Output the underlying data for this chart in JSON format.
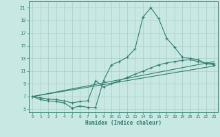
{
  "xlabel": "Humidex (Indice chaleur)",
  "xlim": [
    -0.5,
    23.5
  ],
  "ylim": [
    4.5,
    22
  ],
  "xticks": [
    0,
    1,
    2,
    3,
    4,
    5,
    6,
    7,
    8,
    9,
    10,
    11,
    12,
    13,
    14,
    15,
    16,
    17,
    18,
    19,
    20,
    21,
    22,
    23
  ],
  "yticks": [
    5,
    7,
    9,
    11,
    13,
    15,
    17,
    19,
    21
  ],
  "bg_color": "#c8e8e4",
  "grid_color": "#b0c8c4",
  "line_color": "#2e7d6e",
  "line1_x": [
    0,
    1,
    2,
    3,
    4,
    5,
    6,
    7,
    8,
    9,
    10,
    11,
    12,
    13,
    14,
    15,
    16,
    17,
    18,
    19,
    20,
    21,
    22,
    23
  ],
  "line1_y": [
    7.0,
    6.5,
    6.3,
    6.2,
    6.0,
    5.2,
    5.5,
    5.3,
    5.3,
    9.5,
    12.0,
    12.5,
    13.2,
    14.5,
    19.5,
    21.0,
    19.3,
    16.2,
    14.8,
    13.2,
    13.0,
    12.8,
    12.2,
    12.0
  ],
  "line2_x": [
    0,
    1,
    2,
    3,
    4,
    5,
    6,
    7,
    8,
    9,
    10,
    11,
    12,
    13,
    14,
    15,
    16,
    17,
    18,
    19,
    20,
    21,
    22,
    23
  ],
  "line2_y": [
    7.0,
    6.8,
    6.6,
    6.5,
    6.3,
    6.0,
    6.2,
    6.3,
    9.5,
    8.5,
    9.0,
    9.5,
    10.0,
    10.5,
    11.0,
    11.5,
    12.0,
    12.3,
    12.5,
    12.7,
    12.8,
    12.5,
    12.3,
    12.2
  ],
  "line3_x": [
    0,
    23
  ],
  "line3_y": [
    7.0,
    12.5
  ],
  "line4_x": [
    0,
    23
  ],
  "line4_y": [
    7.0,
    11.8
  ]
}
